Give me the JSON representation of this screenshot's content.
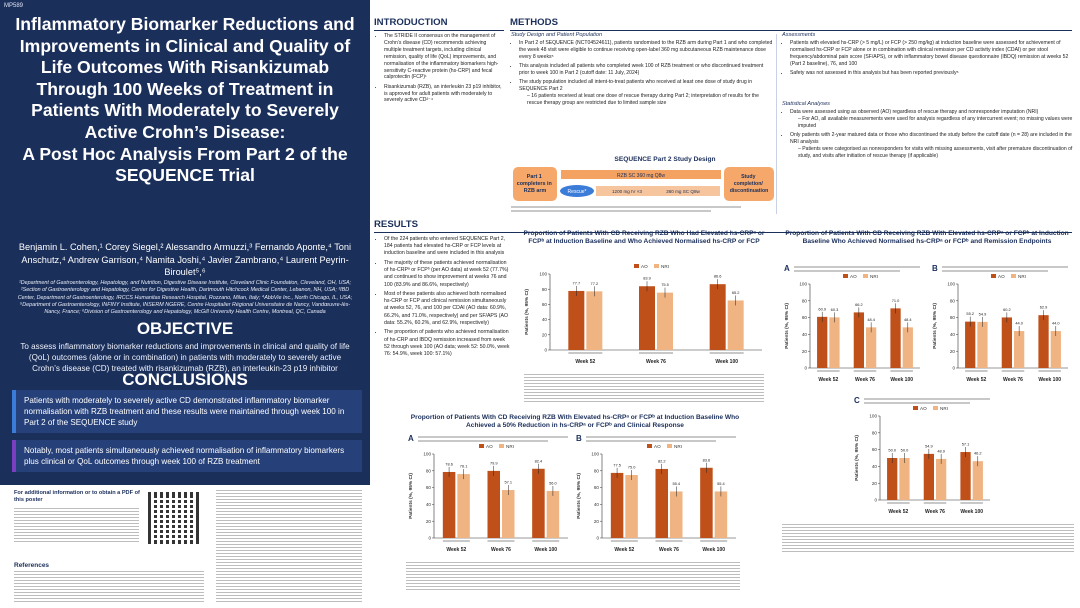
{
  "poster_id": "MP589",
  "title": "Inflammatory Biomarker Reductions and Improvements in Clinical and Quality of Life Outcomes With Risankizumab Through 100 Weeks of Treatment in Patients With Moderately to Severely Active Crohn’s Disease:",
  "subtitle": "A Post Hoc Analysis From Part 2 of the SEQUENCE Trial",
  "authors": "Benjamin L. Cohen,¹ Corey Siegel,² Alessandro Armuzzi,³ Fernando Aponte,⁴ Toni Anschutz,⁴ Andrew Garrison,⁴ Namita Joshi,⁴ Javier Zambrano,⁴ Laurent Peyrin-Biroulet⁵,⁶",
  "affiliations": "¹Department of Gastroenterology, Hepatology, and Nutrition, Digestive Disease Institute, Cleveland Clinic Foundation, Cleveland, OH, USA; ²Section of Gastroenterology and Hepatology, Center for Digestive Health, Dartmouth Hitchcock Medical Center, Lebanon, NH, USA; ³IBD Center, Department of Gastroenterology, IRCCS Humanitas Research Hospital, Rozzano, Milan, Italy; ⁴AbbVie Inc., North Chicago, IL, USA; ⁵Department of Gastroenterology, INFINY Institute, INSERM NGERE, Centre Hospitalier Régional Universitaire de Nancy, Vandœuvre-lès-Nancy, France; ⁶Division of Gastroenterology and Hepatology, McGill University Health Centre, Montreal, QC, Canada",
  "objective": {
    "heading": "OBJECTIVE",
    "text": "To assess inflammatory biomarker reductions and improvements in clinical and quality of life (QoL) outcomes (alone or in combination) in patients with moderately to severely active Crohn’s disease (CD) treated with risankizumab (RZB), an interleukin-23 p19 inhibitor"
  },
  "conclusions": {
    "heading": "CONCLUSIONS",
    "box1": "Patients with moderately to severely active CD demonstrated inflammatory biomarker normalisation with RZB treatment and these results were maintained through week 100 in Part 2 of the SEQUENCE study",
    "box2": "Notably, most patients simultaneously achieved normalisation of inflammatory biomarkers plus clinical or QoL outcomes through week 100 of RZB treatment"
  },
  "more_info": "For additional information or to obtain a PDF of this poster",
  "references_heading": "References",
  "introduction": {
    "heading": "INTRODUCTION",
    "bullets": [
      "The STRIDE II consensus on the management of Crohn’s disease (CD) recommends achieving multiple treatment targets, including clinical remission, quality of life (QoL) improvements, and normalisation of the inflammatory biomarkers high-sensitivity C-reactive protein (hs-CRP) and fecal calprotectin (FCP)¹",
      "Risankizumab (RZB), an interleukin 23 p19 inhibitor, is approved for adult patients with moderately to severely active CD²⁻⁴"
    ]
  },
  "methods": {
    "heading": "METHODS",
    "design_heading": "Study Design and Patient Population",
    "design_bullets": [
      "In Part 2 of SEQUENCE (NCT04524611), patients randomised to the RZB arm during Part 1 and who completed the week 48 visit were eligible to continue receiving open-label 360 mg subcutaneous RZB maintenance dose every 8 weeks⁵",
      "This analysis included all patients who completed week 100 of RZB treatment or who discontinued treatment prior to week 100 in Part 2 (cutoff date: 11 July, 2024)",
      "The study population included all intent-to-treat patients who received at least one dose of study drug in SEQUENCE Part 2"
    ],
    "design_sub": "16 patients received at least one dose of rescue therapy during Part 2; interpretation of results for the rescue therapy group are restricted due to limited sample size",
    "assess_heading": "Assessments",
    "assess_bullets": [
      "Patients with elevated hs-CRP (> 5 mg/L) or FCP (> 250 mg/kg) at induction baseline were assessed for achievement of normalised hs-CRP or FCP alone or in combination with clinical remission per CD activity index (CDAI) or per stool frequency/abdominal pain score (SF/APS), or with inflammatory bowel disease questionnaire (IBDQ) remission at weeks 52 (Part 2 baseline), 76, and 100",
      "Safety was not assessed in this analysis but has been reported previously⁶"
    ],
    "stat_heading": "Statistical Analyses",
    "stat_bullets": [
      "Data were assessed using as observed (AO) regardless of rescue therapy and nonresponder imputation (NRI)",
      "Only patients with 2-year matured data or those who discontinued the study before the cutoff date (n = 28) are included in the NRI analysis"
    ],
    "stat_sub1": "For AO, all available measurements were used for analysis regardless of any intercurrent event; no missing values were imputed",
    "stat_sub2": "Patients were categorised as nonresponders for visits with missing assessments, visit after premature discontinuation of study, and visits after initiation of rescue therapy (if applicable)"
  },
  "diagram": {
    "title": "SEQUENCE Part 2 Study Design",
    "part1": "Part 1 completers in RZB arm",
    "dose": "RZB SC 360 mg Q8w",
    "rescue": "Rescue*",
    "iv": "1200 mg IV ×3",
    "sc": "360 mg SC Q8w",
    "end": "Study completion/ discontinuation"
  },
  "results": {
    "heading": "RESULTS",
    "bullets": [
      "Of the 224 patients who entered SEQUENCE Part 2, 184 patients had elevated hs-CRP or FCP levels at induction baseline and were included in this analysis",
      "The majority of these patients achieved normalisation of hs-CRPᵃ or FCPᵇ (per AO data) at week 52 (77.7%) and continued to show improvement at weeks 76 and 100 (83.9% and 86.6%, respectively)",
      "Most of these patients also achieved both normalised hs-CRP or FCP and clinical remission simultaneously at weeks 52, 76, and 100 per CDAI (AO data: 60.9%, 66.2%, and 71.0%, respectively) and per SF/APS (AO data: 55.2%, 60.2%, and 62.9%, respectively)",
      "The proportion of patients who achieved normalisation of hs-CRP and IBDQ remission increased from week 52 through week 100 (AO data; week 52: 50.0%, week 76: 54.9%, week 100: 57.1%)"
    ]
  },
  "fig_titles": {
    "fig1": "Proportion of Patients With CD Receiving RZB Who Had Elevated hs-CRPᵃ or FCPᵇ at Induction Baseline and Who Achieved Normalised hs-CRP or FCP",
    "fig2": "Proportion of Patients With CD Receiving RZB With Elevated hs-CRPᵃ or FCPᵇ at Induction Baseline Who Achieved Normalised hs-CRPᵃ or FCPᵇ and Remission Endpoints",
    "fig3": "Proportion of Patients With CD Receiving RZB With Elevated hs-CRPᵃ or FCPᵇ at Induction Baseline Who Achieved a 50% Reduction in hs-CRPᵃ or FCPᵇ and Clinical Response"
  },
  "chart_data": [
    {
      "type": "bar",
      "id": "fig1",
      "categories": [
        "Week 52",
        "Week 76",
        "Week 100"
      ],
      "ylabel": "Patients (%, 95% CI)",
      "ylim": [
        0,
        100
      ],
      "yticks": [
        0,
        20,
        40,
        60,
        80,
        100
      ],
      "series": [
        {
          "name": "AO",
          "values": [
            77.7,
            83.9,
            86.6
          ]
        },
        {
          "name": "NRI",
          "values": [
            77.2,
            75.5,
            65.2
          ]
        }
      ]
    },
    {
      "type": "bar",
      "id": "fig2A",
      "panel": "A",
      "categories": [
        "Week 52",
        "Week 76",
        "Week 100"
      ],
      "ylabel": "Patients (%, 95% CI)",
      "ylim": [
        0,
        100
      ],
      "yticks": [
        0,
        20,
        40,
        60,
        80,
        100
      ],
      "series": [
        {
          "name": "AO",
          "values": [
            60.9,
            66.2,
            71.0
          ]
        },
        {
          "name": "NRI",
          "values": [
            60.3,
            48.4,
            48.4
          ]
        }
      ]
    },
    {
      "type": "bar",
      "id": "fig2B",
      "panel": "B",
      "categories": [
        "Week 52",
        "Week 76",
        "Week 100"
      ],
      "ylabel": "Patients (%, 95% CI)",
      "ylim": [
        0,
        100
      ],
      "yticks": [
        0,
        20,
        40,
        60,
        80,
        100
      ],
      "series": [
        {
          "name": "AO",
          "values": [
            55.2,
            60.2,
            62.9
          ]
        },
        {
          "name": "NRI",
          "values": [
            54.9,
            44.0,
            44.0
          ]
        }
      ]
    },
    {
      "type": "bar",
      "id": "fig2C",
      "panel": "C",
      "categories": [
        "Week 52",
        "Week 76",
        "Week 100"
      ],
      "ylabel": "Patients (%, 95% CI)",
      "ylim": [
        0,
        100
      ],
      "yticks": [
        0,
        20,
        40,
        60,
        80,
        100
      ],
      "series": [
        {
          "name": "AO",
          "values": [
            50.0,
            54.9,
            57.1
          ]
        },
        {
          "name": "NRI",
          "values": [
            50.0,
            48.9,
            46.2
          ]
        }
      ]
    },
    {
      "type": "bar",
      "id": "fig3A",
      "panel": "A",
      "categories": [
        "Week 52",
        "Week 76",
        "Week 100"
      ],
      "ylabel": "Patients (%, 95% CI)",
      "ylim": [
        0,
        100
      ],
      "yticks": [
        0,
        20,
        40,
        60,
        80,
        100
      ],
      "series": [
        {
          "name": "AO",
          "values": [
            78.6,
            79.9,
            82.4
          ]
        },
        {
          "name": "NRI",
          "values": [
            76.1,
            57.1,
            56.0
          ]
        }
      ]
    },
    {
      "type": "bar",
      "id": "fig3B",
      "panel": "B",
      "categories": [
        "Week 52",
        "Week 76",
        "Week 100"
      ],
      "ylabel": "Patients (%, 95% CI)",
      "ylim": [
        0,
        100
      ],
      "yticks": [
        0,
        20,
        40,
        60,
        80,
        100
      ],
      "series": [
        {
          "name": "AO",
          "values": [
            77.5,
            82.2,
            83.6
          ]
        },
        {
          "name": "NRI",
          "values": [
            75.0,
            55.4,
            55.4
          ]
        }
      ]
    }
  ],
  "legend": {
    "ao": "AO",
    "nri": "NRI",
    "ao_color": "#c0501a",
    "nri_color": "#f0b483"
  }
}
